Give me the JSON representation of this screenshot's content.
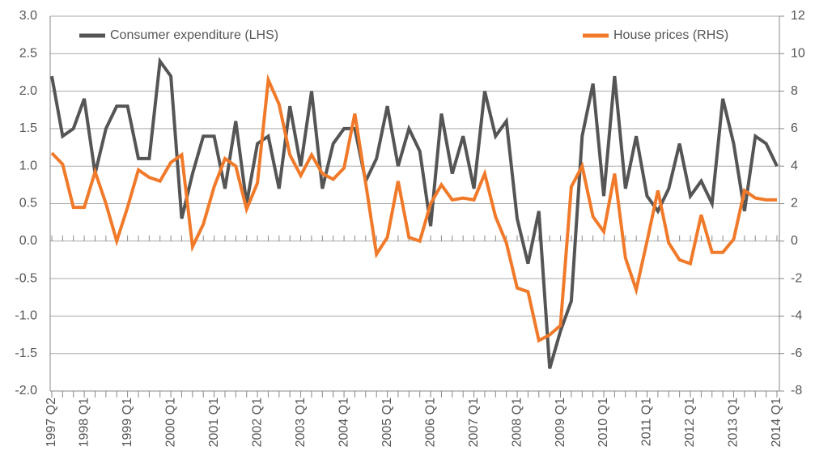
{
  "chart_data": {
    "type": "line",
    "categories": [
      "1997 Q2",
      null,
      null,
      "1998 Q1",
      null,
      null,
      null,
      "1999 Q1",
      null,
      null,
      null,
      "2000 Q1",
      null,
      null,
      null,
      "2001 Q1",
      null,
      null,
      null,
      "2002 Q1",
      null,
      null,
      null,
      "2003 Q1",
      null,
      null,
      null,
      "2004 Q1",
      null,
      null,
      null,
      "2005 Q1",
      null,
      null,
      null,
      "2006 Q1",
      null,
      null,
      null,
      "2007 Q1",
      null,
      null,
      null,
      "2008 Q1",
      null,
      null,
      null,
      "2009 Q1",
      null,
      null,
      null,
      "2010 Q1",
      null,
      null,
      null,
      "2011 Q1",
      null,
      null,
      null,
      "2012 Q1",
      null,
      null,
      null,
      "2013 Q1",
      null,
      null,
      null,
      "2014 Q1"
    ],
    "series": [
      {
        "name": "Consumer expenditure (LHS)",
        "color": "#555555",
        "values": [
          2.2,
          1.4,
          1.5,
          1.9,
          0.9,
          1.5,
          1.8,
          1.8,
          1.1,
          1.1,
          2.4,
          2.2,
          0.3,
          0.9,
          1.4,
          1.4,
          0.7,
          1.6,
          0.5,
          1.3,
          1.4,
          0.7,
          1.8,
          1.0,
          2.0,
          0.7,
          1.3,
          1.5,
          1.5,
          0.8,
          1.1,
          1.8,
          1.0,
          1.5,
          1.2,
          0.2,
          1.7,
          0.9,
          1.4,
          0.7,
          2.0,
          1.4,
          1.6,
          0.3,
          -0.3,
          0.4,
          -1.7,
          -1.2,
          -0.8,
          1.4,
          2.1,
          0.6,
          2.2,
          0.7,
          1.4,
          0.6,
          0.4,
          0.7,
          1.3,
          0.6,
          0.8,
          0.5,
          1.9,
          1.3,
          0.4,
          1.4,
          1.3,
          1.0
        ]
      },
      {
        "name": "House prices (RHS)",
        "color": "#f07a2a",
        "axis": "y2",
        "values": [
          4.7,
          4.1,
          1.8,
          1.8,
          3.7,
          2.0,
          0.0,
          1.8,
          3.8,
          3.4,
          3.2,
          4.2,
          4.6,
          -0.3,
          0.9,
          2.9,
          4.4,
          4.0,
          1.7,
          3.1,
          8.6,
          7.3,
          4.6,
          3.5,
          4.6,
          3.6,
          3.3,
          3.9,
          6.8,
          3.1,
          -0.7,
          0.2,
          3.2,
          0.2,
          0.0,
          2.0,
          3.0,
          2.2,
          2.3,
          2.2,
          3.6,
          1.3,
          -0.1,
          -2.5,
          -2.7,
          -5.3,
          -5.0,
          -4.5,
          2.9,
          4.0,
          1.3,
          0.5,
          3.6,
          -0.9,
          -2.6,
          0.0,
          2.7,
          -0.1,
          -1.0,
          -1.2,
          1.4,
          -0.6,
          -0.6,
          0.1,
          2.7,
          2.3,
          2.2,
          2.2
        ]
      }
    ],
    "ylim": [
      -2,
      3
    ],
    "yticks": [
      {
        "value": -2,
        "label": "-2.0"
      },
      -1.5,
      {
        "value": -1,
        "label": "-1.0"
      },
      -0.5,
      {
        "value": 0,
        "label": "0.0"
      },
      0.5,
      {
        "value": 1,
        "label": "1.0"
      },
      1.5,
      {
        "value": 2,
        "label": "2.0"
      },
      2.5,
      {
        "value": 3,
        "label": "3.0"
      }
    ],
    "y2lim": [
      -8,
      12
    ],
    "y2ticks": [
      -8,
      -6,
      -4,
      -2,
      0,
      2,
      4,
      6,
      8,
      10,
      12
    ],
    "grid": true
  }
}
